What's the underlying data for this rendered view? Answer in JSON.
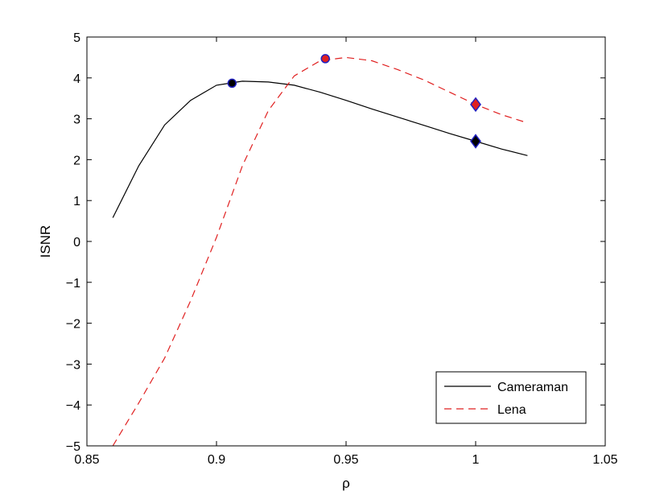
{
  "chart_data": {
    "type": "line",
    "title": "",
    "xlabel": "ρ",
    "ylabel": "ISNR",
    "xlim": [
      0.85,
      1.05
    ],
    "ylim": [
      -5,
      5
    ],
    "xticks": [
      0.85,
      0.9,
      0.95,
      1,
      1.05
    ],
    "xtick_labels": [
      "0.85",
      "0.9",
      "0.95",
      "1",
      "1.05"
    ],
    "yticks": [
      -5,
      -4,
      -3,
      -2,
      -1,
      0,
      1,
      2,
      3,
      4,
      5
    ],
    "ytick_labels": [
      "−5",
      "−4",
      "−3",
      "−2",
      "−1",
      "0",
      "1",
      "2",
      "3",
      "4",
      "5"
    ],
    "grid": false,
    "legend_position": "bottom-right",
    "series": [
      {
        "name": "Cameraman",
        "color": "#000000",
        "dash": "solid",
        "x": [
          0.86,
          0.87,
          0.88,
          0.89,
          0.9,
          0.906,
          0.91,
          0.92,
          0.93,
          0.94,
          0.95,
          0.96,
          0.97,
          0.98,
          0.99,
          1.0,
          1.01,
          1.02
        ],
        "y": [
          0.58,
          1.85,
          2.85,
          3.45,
          3.82,
          3.88,
          3.92,
          3.9,
          3.82,
          3.65,
          3.45,
          3.24,
          3.04,
          2.84,
          2.64,
          2.45,
          2.26,
          2.1
        ],
        "markers": [
          {
            "shape": "circle",
            "x": 0.906,
            "y": 3.87,
            "fill": "#000000",
            "stroke": "#2020c0"
          },
          {
            "shape": "diamond",
            "x": 1.0,
            "y": 2.45,
            "fill": "#000000",
            "stroke": "#2020c0"
          }
        ]
      },
      {
        "name": "Lena",
        "color": "#e02020",
        "dash": "dashed",
        "x": [
          0.86,
          0.87,
          0.88,
          0.89,
          0.9,
          0.91,
          0.92,
          0.93,
          0.94,
          0.95,
          0.96,
          0.97,
          0.98,
          0.99,
          1.0,
          1.01,
          1.02
        ],
        "y": [
          -5.0,
          -3.95,
          -2.85,
          -1.45,
          0.1,
          1.85,
          3.2,
          4.05,
          4.42,
          4.5,
          4.42,
          4.2,
          3.95,
          3.65,
          3.35,
          3.1,
          2.9
        ],
        "markers": [
          {
            "shape": "circle",
            "x": 0.942,
            "y": 4.47,
            "fill": "#e02020",
            "stroke": "#2020c0"
          },
          {
            "shape": "diamond",
            "x": 1.0,
            "y": 3.35,
            "fill": "#e02020",
            "stroke": "#2020c0"
          }
        ]
      }
    ]
  }
}
